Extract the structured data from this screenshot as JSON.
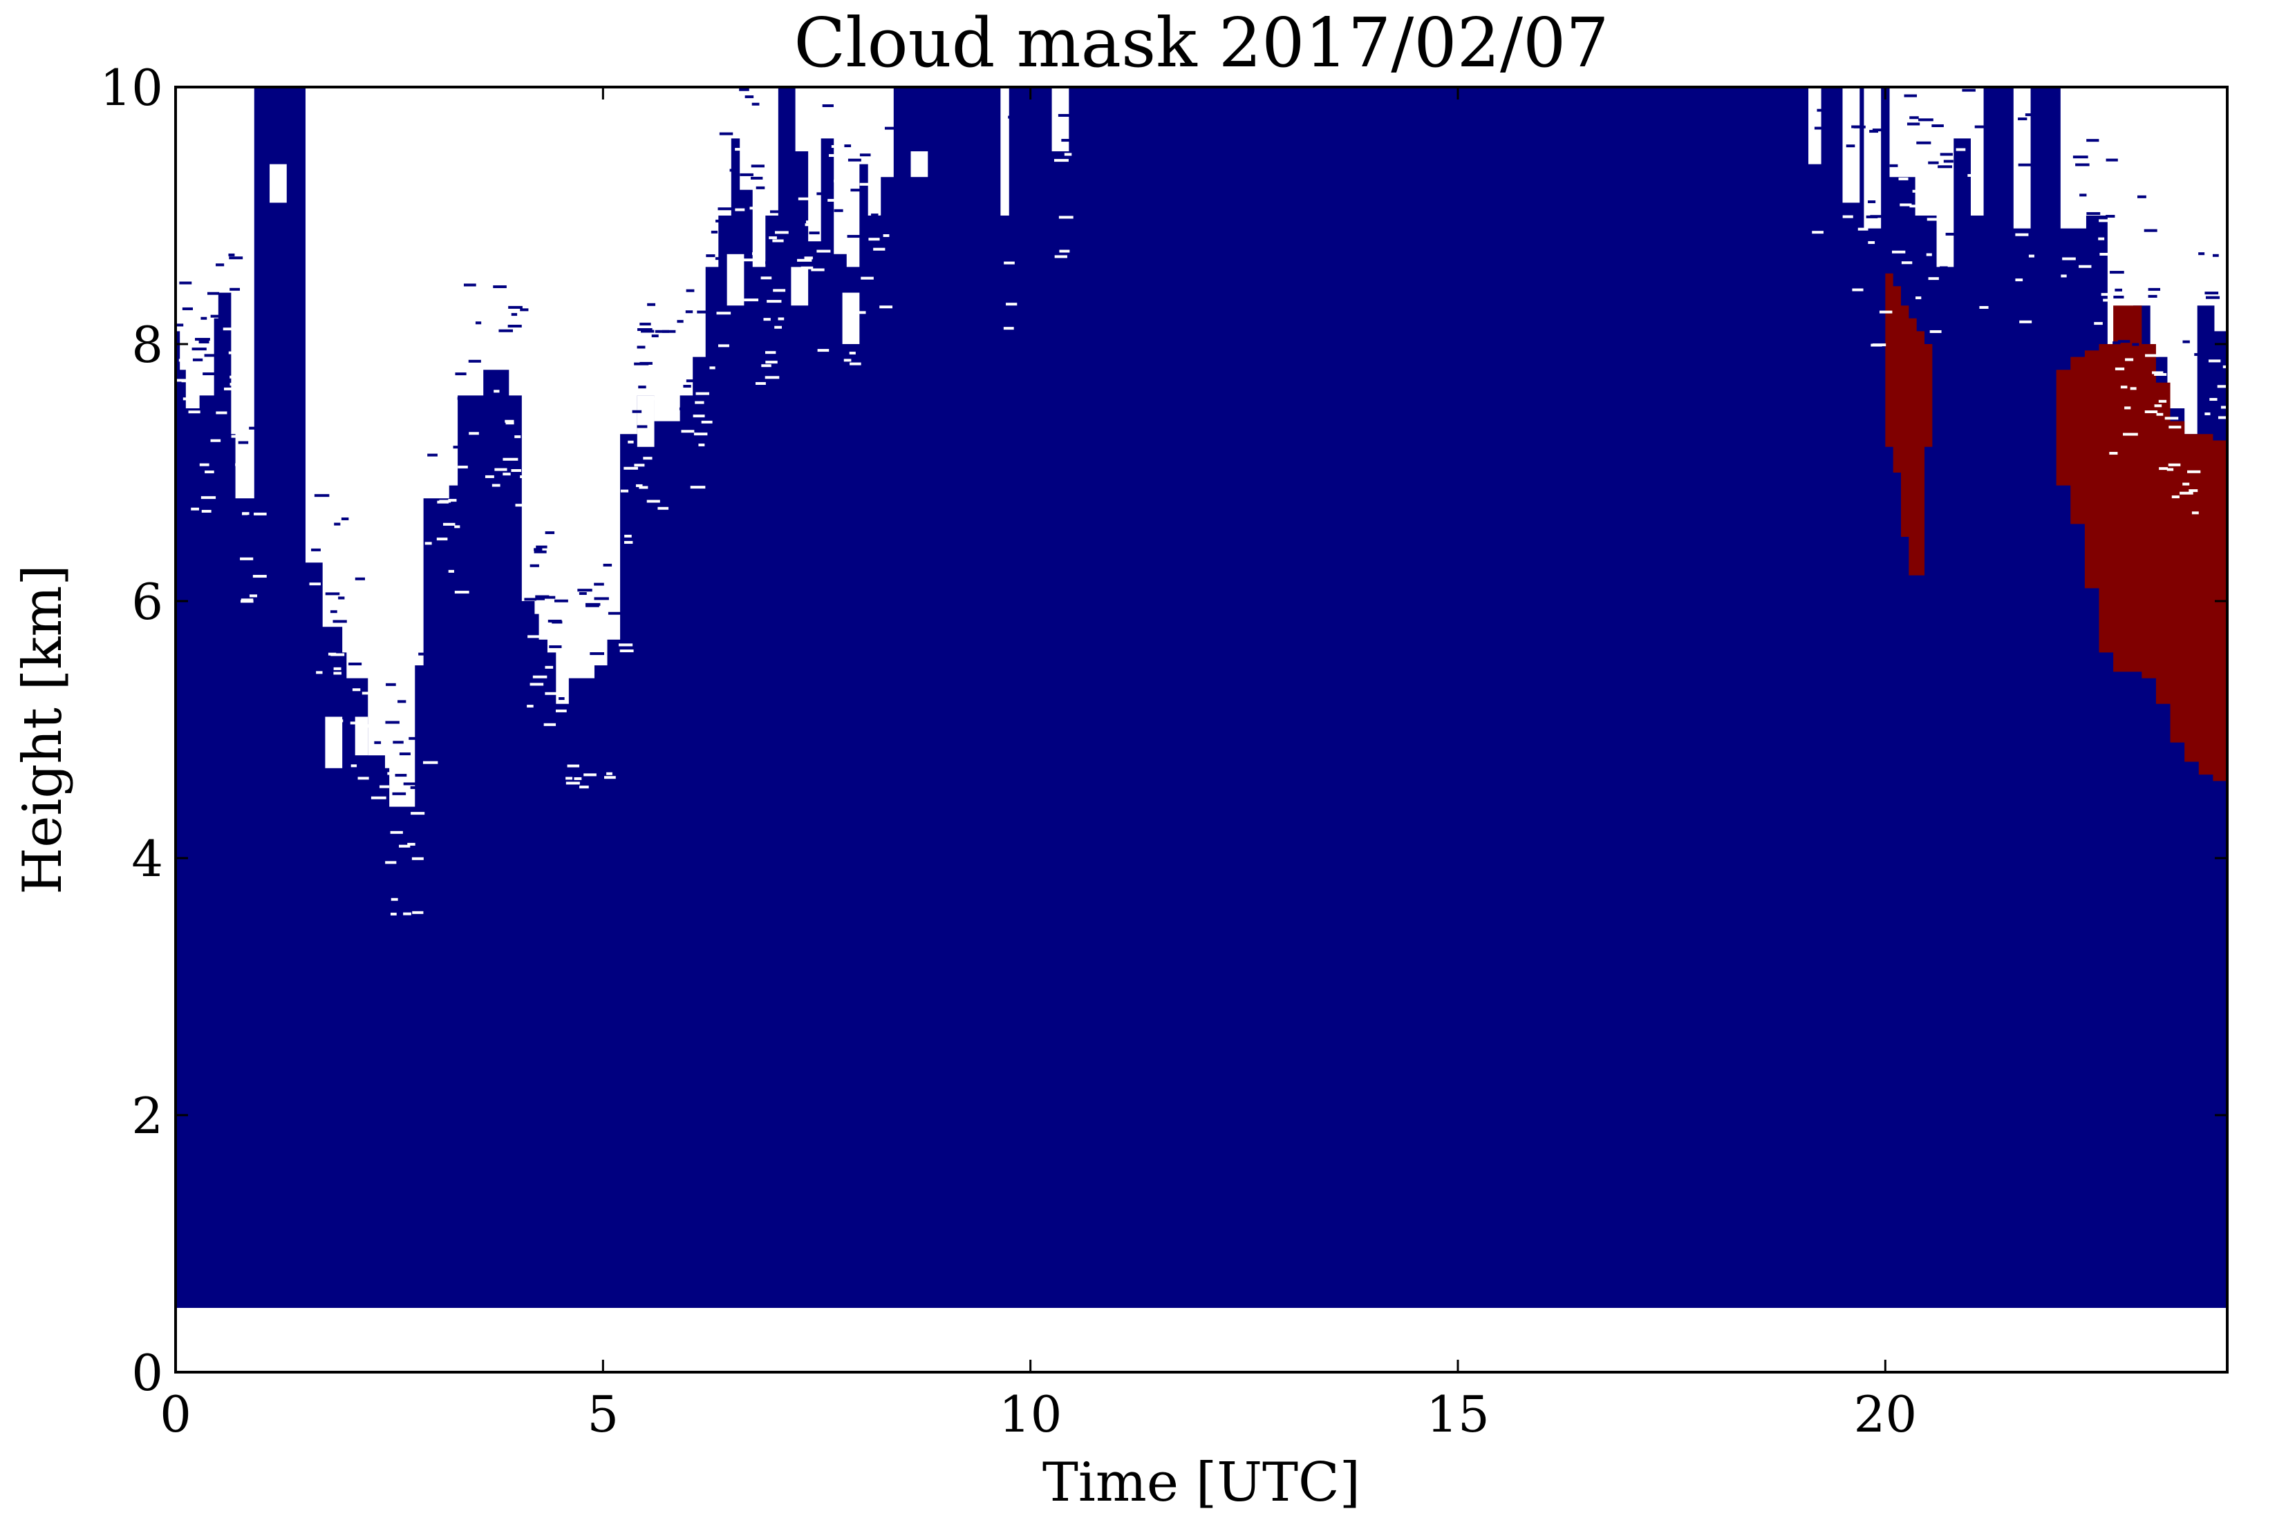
{
  "chart_data": {
    "type": "heatmap",
    "title": "Cloud mask 2017/02/07",
    "xlabel": "Time [UTC]",
    "ylabel": "Height [km]",
    "xlim": [
      0,
      24
    ],
    "ylim": [
      0,
      10
    ],
    "x_ticks": [
      0,
      5,
      10,
      15,
      20
    ],
    "y_ticks": [
      0,
      2,
      4,
      6,
      8,
      10
    ],
    "grid": false,
    "legend": "none",
    "colors": {
      "clear": "#ffffff",
      "cloud": "#000080",
      "second_class": "#800000"
    },
    "data_lower_limit_km": 0.5,
    "cloud_top_km": [
      {
        "t": 0.0,
        "top": 8.1
      },
      {
        "t": 0.05,
        "top": 7.8
      },
      {
        "t": 0.15,
        "top": 7.6
      },
      {
        "t": 0.45,
        "top": 8.2
      },
      {
        "t": 0.5,
        "top": 8.4
      },
      {
        "t": 0.65,
        "top": 7.3
      },
      {
        "t": 0.7,
        "top": 6.8
      },
      {
        "t": 0.9,
        "top": 6.8
      },
      {
        "t": 0.92,
        "top": 10.0
      },
      {
        "t": 1.5,
        "top": 10.0
      },
      {
        "t": 1.52,
        "top": 6.3
      },
      {
        "t": 1.7,
        "top": 6.3
      },
      {
        "t": 1.72,
        "top": 5.8
      },
      {
        "t": 1.95,
        "top": 5.6
      },
      {
        "t": 2.0,
        "top": 5.4
      },
      {
        "t": 2.25,
        "top": 4.8
      },
      {
        "t": 2.45,
        "top": 4.7
      },
      {
        "t": 2.5,
        "top": 4.4
      },
      {
        "t": 2.7,
        "top": 4.4
      },
      {
        "t": 2.8,
        "top": 5.5
      },
      {
        "t": 2.9,
        "top": 6.8
      },
      {
        "t": 3.2,
        "top": 6.9
      },
      {
        "t": 3.3,
        "top": 7.6
      },
      {
        "t": 3.6,
        "top": 7.8
      },
      {
        "t": 3.9,
        "top": 7.6
      },
      {
        "t": 4.05,
        "top": 6.0
      },
      {
        "t": 4.2,
        "top": 5.9
      },
      {
        "t": 4.25,
        "top": 5.7
      },
      {
        "t": 4.35,
        "top": 5.6
      },
      {
        "t": 4.45,
        "top": 5.2
      },
      {
        "t": 4.6,
        "top": 5.4
      },
      {
        "t": 4.9,
        "top": 5.5
      },
      {
        "t": 5.05,
        "top": 5.7
      },
      {
        "t": 5.2,
        "top": 7.3
      },
      {
        "t": 5.4,
        "top": 7.6
      },
      {
        "t": 5.6,
        "top": 7.4
      },
      {
        "t": 5.9,
        "top": 7.6
      },
      {
        "t": 6.05,
        "top": 7.9
      },
      {
        "t": 6.2,
        "top": 8.6
      },
      {
        "t": 6.35,
        "top": 9.0
      },
      {
        "t": 6.5,
        "top": 9.6
      },
      {
        "t": 6.6,
        "top": 9.2
      },
      {
        "t": 6.75,
        "top": 8.6
      },
      {
        "t": 6.9,
        "top": 9.0
      },
      {
        "t": 7.05,
        "top": 10.0
      },
      {
        "t": 7.25,
        "top": 9.5
      },
      {
        "t": 7.4,
        "top": 8.8
      },
      {
        "t": 7.55,
        "top": 9.6
      },
      {
        "t": 7.7,
        "top": 8.7
      },
      {
        "t": 7.85,
        "top": 8.6
      },
      {
        "t": 8.0,
        "top": 9.4
      },
      {
        "t": 8.1,
        "top": 9.0
      },
      {
        "t": 8.25,
        "top": 9.3
      },
      {
        "t": 8.4,
        "top": 10.0
      },
      {
        "t": 9.6,
        "top": 10.0
      },
      {
        "t": 9.65,
        "top": 9.0
      },
      {
        "t": 9.75,
        "top": 10.0
      },
      {
        "t": 10.2,
        "top": 10.0
      },
      {
        "t": 10.25,
        "top": 9.5
      },
      {
        "t": 10.45,
        "top": 10.0
      },
      {
        "t": 18.95,
        "top": 10.0
      },
      {
        "t": 19.1,
        "top": 9.4
      },
      {
        "t": 19.25,
        "top": 10.0
      },
      {
        "t": 19.45,
        "top": 10.0
      },
      {
        "t": 19.5,
        "top": 9.1
      },
      {
        "t": 19.7,
        "top": 10.0
      },
      {
        "t": 19.75,
        "top": 8.9
      },
      {
        "t": 19.95,
        "top": 10.0
      },
      {
        "t": 20.05,
        "top": 9.3
      },
      {
        "t": 20.35,
        "top": 9.0
      },
      {
        "t": 20.6,
        "top": 8.6
      },
      {
        "t": 20.8,
        "top": 9.6
      },
      {
        "t": 21.0,
        "top": 9.0
      },
      {
        "t": 21.15,
        "top": 10.0
      },
      {
        "t": 21.45,
        "top": 10.0
      },
      {
        "t": 21.5,
        "top": 8.9
      },
      {
        "t": 21.7,
        "top": 10.0
      },
      {
        "t": 22.0,
        "top": 10.0
      },
      {
        "t": 22.05,
        "top": 8.9
      },
      {
        "t": 22.35,
        "top": 9.0
      },
      {
        "t": 22.6,
        "top": 8.0
      },
      {
        "t": 22.9,
        "top": 8.3
      },
      {
        "t": 23.1,
        "top": 7.9
      },
      {
        "t": 23.3,
        "top": 7.5
      },
      {
        "t": 23.5,
        "top": 7.3
      },
      {
        "t": 23.65,
        "top": 8.3
      },
      {
        "t": 23.85,
        "top": 8.1
      },
      {
        "t": 24.0,
        "top": 7.7
      }
    ],
    "clear_gaps_km": [
      {
        "t0": 0.12,
        "t1": 0.28,
        "y0": 7.5,
        "y1": 8.0
      },
      {
        "t0": 1.1,
        "t1": 1.3,
        "y0": 9.1,
        "y1": 9.4
      },
      {
        "t0": 1.75,
        "t1": 1.95,
        "y0": 4.7,
        "y1": 5.1
      },
      {
        "t0": 2.1,
        "t1": 2.25,
        "y0": 4.8,
        "y1": 5.1
      },
      {
        "t0": 5.4,
        "t1": 5.6,
        "y0": 7.2,
        "y1": 7.6
      },
      {
        "t0": 6.45,
        "t1": 6.65,
        "y0": 8.3,
        "y1": 8.7
      },
      {
        "t0": 7.2,
        "t1": 7.4,
        "y0": 8.3,
        "y1": 8.6
      },
      {
        "t0": 7.8,
        "t1": 8.0,
        "y0": 8.0,
        "y1": 8.4
      },
      {
        "t0": 8.6,
        "t1": 8.8,
        "y0": 9.3,
        "y1": 9.5
      },
      {
        "t0": 20.15,
        "t1": 20.25,
        "y0": 9.5,
        "y1": 9.9
      }
    ],
    "second_class_regions": [
      {
        "name": "",
        "t0": 20.0,
        "t1": 20.55,
        "top_km": [
          8.55,
          8.45,
          8.3,
          8.2,
          8.1,
          8.0
        ],
        "bottom_km": [
          7.2,
          7.0,
          6.5,
          6.2,
          6.2,
          7.2
        ]
      },
      {
        "name": "",
        "t0": 22.0,
        "t1": 24.0,
        "top_km": [
          7.8,
          7.9,
          7.95,
          8.0,
          8.3,
          8.3,
          8.0,
          7.7,
          7.4,
          7.3,
          7.3,
          7.25
        ],
        "bottom_km": [
          6.9,
          6.6,
          6.1,
          5.6,
          5.45,
          5.45,
          5.4,
          5.2,
          4.9,
          4.75,
          4.65,
          4.6
        ]
      }
    ]
  }
}
